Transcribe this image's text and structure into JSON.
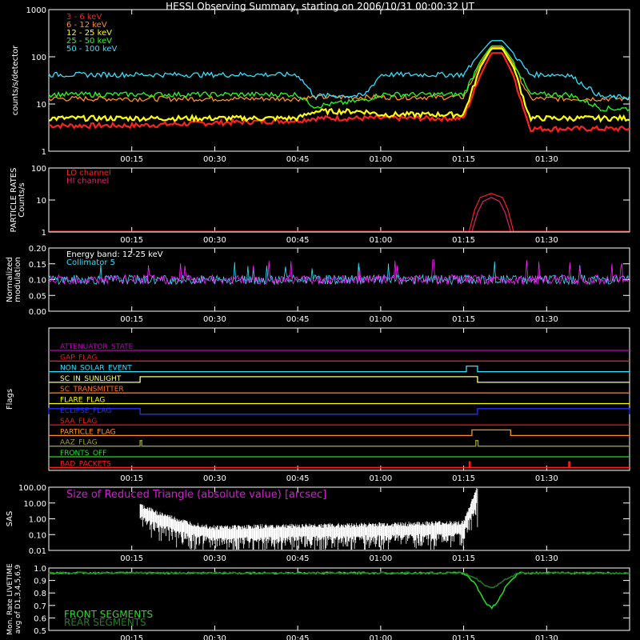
{
  "title": "HESSI Observing Summary, starting on 2006/10/31 00:00:32 UT",
  "time_ticks": [
    "00:15",
    "00:30",
    "00:45",
    "01:00",
    "01:15",
    "01:30"
  ],
  "chart_data": [
    {
      "type": "line",
      "panel": "count-rates",
      "title": "",
      "ylabel": "counts/s/detector",
      "yscale": "log",
      "ylim": [
        1,
        1000
      ],
      "yticks": [
        "1",
        "10",
        "100",
        "1000"
      ],
      "x_minutes": [
        0,
        15,
        30,
        45,
        48,
        57,
        60,
        75,
        78,
        80,
        82,
        84,
        87,
        94,
        100,
        105
      ],
      "series": [
        {
          "name": "3 - 6 keV",
          "color": "#ff2020",
          "values": [
            3.5,
            3.5,
            4,
            4.5,
            5,
            5,
            5,
            5,
            40,
            120,
            120,
            40,
            3,
            3,
            3,
            3
          ]
        },
        {
          "name": "6 - 12 keV",
          "color": "#ff9020",
          "values": [
            13,
            13,
            13,
            13,
            14,
            14,
            14,
            14,
            70,
            160,
            160,
            70,
            13,
            13,
            13,
            13
          ]
        },
        {
          "name": "12 - 25 keV",
          "color": "#ffff00",
          "values": [
            5,
            5,
            5,
            5,
            7,
            7,
            6,
            6,
            60,
            150,
            150,
            60,
            5,
            5,
            5,
            5
          ]
        },
        {
          "name": "25 - 50 keV",
          "color": "#20ff20",
          "values": [
            16,
            16,
            16,
            16,
            9,
            12,
            16,
            16,
            80,
            170,
            170,
            80,
            16,
            16,
            8,
            8
          ]
        },
        {
          "name": "50 - 100 keV",
          "color": "#30e0ff",
          "values": [
            42,
            42,
            42,
            42,
            15,
            15,
            42,
            42,
            120,
            220,
            220,
            120,
            42,
            42,
            14,
            14
          ]
        }
      ]
    },
    {
      "type": "line",
      "panel": "particle-rates",
      "ylabel": "PARTICLE RATES Counts/s",
      "yscale": "log",
      "ylim": [
        1,
        100
      ],
      "yticks": [
        "1",
        "10",
        "100"
      ],
      "series": [
        {
          "name": "LO channel",
          "color": "#ff2020",
          "x_minutes": [
            76,
            77,
            78,
            80,
            82,
            83,
            84
          ],
          "values": [
            1,
            5,
            12,
            16,
            12,
            5,
            1
          ]
        },
        {
          "name": "HI channel",
          "color": "#e0206a",
          "x_minutes": [
            76.5,
            77.5,
            78.5,
            80,
            81.5,
            82.5,
            83.5
          ],
          "values": [
            1,
            4,
            9,
            12,
            9,
            4,
            1
          ]
        }
      ]
    },
    {
      "type": "line",
      "panel": "modulation",
      "ylabel": "Normalized modulation",
      "ylim": [
        0.0,
        0.2
      ],
      "yticks": [
        "0.00",
        "0.05",
        "0.10",
        "0.15",
        "0.20"
      ],
      "annotation": "Energy band: 12-25 keV",
      "series": [
        {
          "name": "Collimator 5",
          "color": "#30e0ff",
          "baseline": 0.1
        },
        {
          "name": "",
          "color": "#ff20ff",
          "baseline": 0.1
        }
      ]
    },
    {
      "type": "line",
      "panel": "flags",
      "ylabel": "Flags",
      "series": [
        {
          "name": "ATTENUATOR_STATE",
          "color": "#c000c0",
          "steps": []
        },
        {
          "name": "GAP_FLAG",
          "color": "#e02020",
          "steps": []
        },
        {
          "name": "NON_SOLAR_EVENT",
          "color": "#30e0ff",
          "steps": [
            [
              75.5,
              77.5
            ]
          ]
        },
        {
          "name": "SC_IN_SUNLIGHT",
          "color": "#ffff80",
          "steps": [
            [
              16.5,
              77.5
            ]
          ]
        },
        {
          "name": "SC_TRANSMITTER",
          "color": "#ff7020",
          "steps": []
        },
        {
          "name": "FLARE_FLAG",
          "color": "#ffff00",
          "steps": []
        },
        {
          "name": "ECLIPSE_FLAG",
          "color": "#2030ff",
          "steps": [
            [
              0,
              16.5
            ],
            [
              77.5,
              105
            ]
          ]
        },
        {
          "name": "SAA_FLAG",
          "color": "#e02020",
          "steps": []
        },
        {
          "name": "PARTICLE_FLAG",
          "color": "#ff9020",
          "steps": [
            [
              76.5,
              83.5
            ]
          ]
        },
        {
          "name": "AAZ_FLAG",
          "color": "#a0a020",
          "steps": [
            [
              16.5,
              16.8
            ],
            [
              77.2,
              77.6
            ]
          ]
        },
        {
          "name": "FRONTS_OFF",
          "color": "#20e020",
          "steps": []
        },
        {
          "name": "BAD_PACKETS",
          "color": "#ff2020",
          "steps": [
            [
              76.0,
              76.2
            ],
            [
              94.0,
              94.2
            ]
          ]
        }
      ]
    },
    {
      "type": "line",
      "panel": "sas",
      "ylabel": "SAS",
      "yscale": "log",
      "ylim": [
        0.01,
        100
      ],
      "yticks": [
        "0.01",
        "0.10",
        "1.00",
        "10.00",
        "100.00"
      ],
      "annotation": "Size of Reduced Triangle (absolute value) [arcsec]",
      "series": [
        {
          "name": "",
          "color": "#ffffff",
          "x_minutes": [
            16.5,
            20,
            25,
            30,
            45,
            60,
            75,
            77.5
          ],
          "values": [
            5,
            1.5,
            0.4,
            0.2,
            0.25,
            0.3,
            0.4,
            80
          ]
        }
      ]
    },
    {
      "type": "line",
      "panel": "livetime",
      "ylabel": "Mon. Rate LIVETIME avg of D1,3,4,5,6,9",
      "ylim": [
        0.5,
        1.0
      ],
      "yticks": [
        "0.5",
        "0.6",
        "0.7",
        "0.8",
        "0.9",
        "1.0"
      ],
      "series": [
        {
          "name": "FRONT SEGMENTS",
          "color": "#20e020",
          "x_minutes": [
            0,
            75,
            77,
            79,
            80,
            81,
            83,
            85,
            105
          ],
          "values": [
            0.96,
            0.96,
            0.88,
            0.72,
            0.68,
            0.72,
            0.88,
            0.96,
            0.96
          ]
        },
        {
          "name": "REAR SEGMENTS",
          "color": "#208020",
          "x_minutes": [
            0,
            75,
            77,
            79,
            80,
            81,
            83,
            85,
            105
          ],
          "values": [
            0.96,
            0.96,
            0.92,
            0.86,
            0.84,
            0.86,
            0.92,
            0.96,
            0.96
          ]
        }
      ]
    }
  ]
}
